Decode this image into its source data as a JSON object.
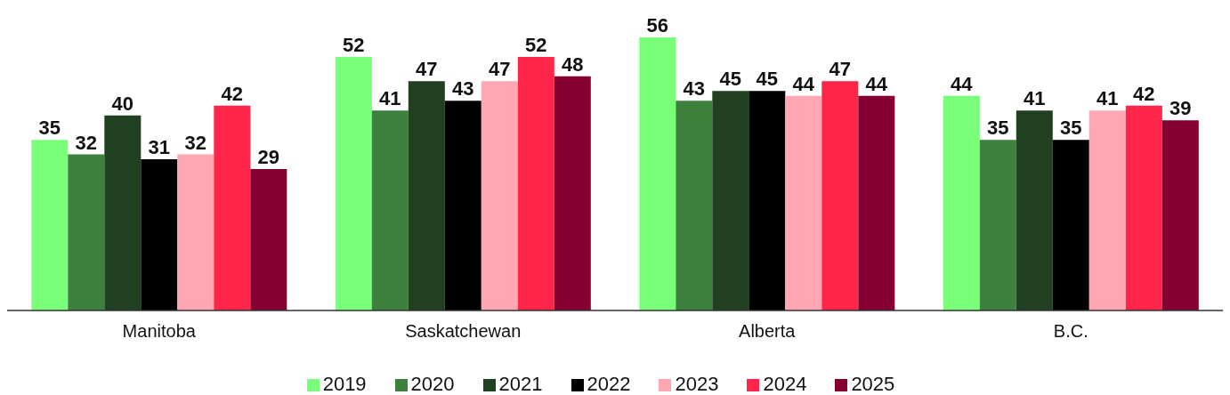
{
  "chart_data": {
    "type": "bar",
    "categories": [
      "Manitoba",
      "Saskatchewan",
      "Alberta",
      "B.C."
    ],
    "series": [
      {
        "name": "2019",
        "color": "#7aff7a",
        "values": [
          35,
          52,
          56,
          44
        ]
      },
      {
        "name": "2020",
        "color": "#3e813e",
        "values": [
          32,
          41,
          43,
          35
        ]
      },
      {
        "name": "2021",
        "color": "#213f21",
        "values": [
          40,
          47,
          45,
          41
        ]
      },
      {
        "name": "2022",
        "color": "#000000",
        "values": [
          31,
          43,
          45,
          35
        ]
      },
      {
        "name": "2023",
        "color": "#ffa7b3",
        "values": [
          32,
          47,
          44,
          41
        ]
      },
      {
        "name": "2024",
        "color": "#ff2649",
        "values": [
          42,
          52,
          47,
          42
        ]
      },
      {
        "name": "2025",
        "color": "#850030",
        "values": [
          29,
          48,
          44,
          39
        ]
      }
    ],
    "data_labels": true,
    "legend": "bottom"
  }
}
